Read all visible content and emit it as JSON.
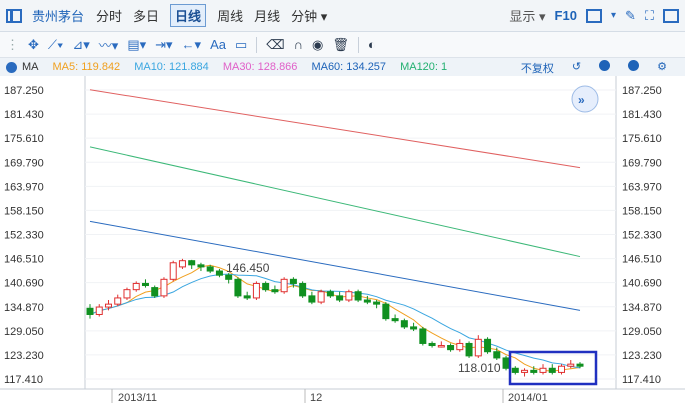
{
  "header": {
    "stock_name": "贵州茅台",
    "periods": [
      "分时",
      "多日",
      "日线",
      "周线",
      "月线",
      "分钟 ▾"
    ],
    "active_period": "日线",
    "display_label": "显示 ▾",
    "f10_label": "F10"
  },
  "ma_bar": {
    "label": "MA",
    "ma5": "MA5: 119.842",
    "ma10": "MA10: 121.884",
    "ma30": "MA30: 128.866",
    "ma60": "MA60: 134.257",
    "ma120": "MA120: 1",
    "no_restore": "不复权",
    "colors": {
      "ma5": "#f0a020",
      "ma10": "#3aa6e0",
      "ma30": "#e060c8",
      "ma60": "#1e63b8",
      "ma120": "#22b070"
    }
  },
  "price_axis": [
    "187.250",
    "181.430",
    "175.610",
    "169.790",
    "163.970",
    "158.150",
    "152.330",
    "146.510",
    "140.690",
    "134.870",
    "129.050",
    "123.230",
    "117.410"
  ],
  "annotations": {
    "high": "146.450",
    "low": "118.010"
  },
  "date_axis": [
    "2013/11",
    "12",
    "2014/01"
  ],
  "chart_data": {
    "type": "candlestick",
    "ylim": [
      115,
      190
    ],
    "ma_lines": {
      "ma120": [
        [
          0,
          187.3
        ],
        [
          1,
          168.5
        ]
      ],
      "ma60": [
        [
          0,
          173.5
        ],
        [
          1,
          147.0
        ]
      ],
      "ma30": [
        [
          0,
          155.5
        ],
        [
          1,
          134.0
        ]
      ]
    },
    "candles": [
      [
        134.5,
        133.0,
        135.5,
        132.0
      ],
      [
        133.0,
        134.8,
        135.5,
        132.5
      ],
      [
        134.8,
        135.5,
        136.5,
        134.0
      ],
      [
        135.5,
        137.0,
        137.8,
        135.0
      ],
      [
        137.0,
        139.0,
        139.5,
        136.5
      ],
      [
        139.0,
        140.5,
        141.0,
        138.5
      ],
      [
        140.5,
        140.0,
        141.5,
        139.5
      ],
      [
        139.5,
        137.5,
        140.0,
        137.0
      ],
      [
        137.5,
        141.5,
        142.0,
        137.0
      ],
      [
        141.5,
        145.5,
        146.0,
        141.0
      ],
      [
        144.5,
        146.0,
        146.45,
        144.0
      ],
      [
        146.0,
        145.0,
        146.2,
        144.0
      ],
      [
        145.0,
        144.5,
        145.5,
        143.5
      ],
      [
        144.5,
        143.5,
        145.0,
        143.0
      ],
      [
        143.5,
        142.5,
        144.0,
        142.0
      ],
      [
        142.5,
        141.5,
        143.0,
        140.5
      ],
      [
        141.5,
        137.5,
        142.0,
        137.0
      ],
      [
        137.5,
        137.0,
        138.5,
        136.5
      ],
      [
        137.0,
        140.5,
        141.0,
        136.5
      ],
      [
        140.5,
        139.0,
        141.0,
        138.5
      ],
      [
        139.0,
        138.5,
        140.0,
        138.0
      ],
      [
        138.5,
        141.5,
        142.0,
        138.0
      ],
      [
        141.5,
        140.5,
        142.0,
        139.5
      ],
      [
        140.5,
        137.5,
        141.0,
        137.0
      ],
      [
        137.5,
        136.0,
        138.5,
        135.5
      ],
      [
        136.0,
        138.5,
        139.0,
        135.5
      ],
      [
        138.5,
        137.5,
        139.0,
        137.0
      ],
      [
        137.5,
        136.5,
        138.5,
        136.0
      ],
      [
        136.5,
        138.5,
        139.0,
        136.0
      ],
      [
        138.5,
        136.5,
        139.0,
        136.0
      ],
      [
        136.5,
        136.0,
        137.5,
        135.5
      ],
      [
        136.0,
        135.5,
        136.5,
        134.5
      ],
      [
        135.5,
        132.0,
        136.0,
        131.5
      ],
      [
        132.0,
        131.5,
        133.0,
        131.0
      ],
      [
        131.5,
        130.0,
        132.0,
        129.5
      ],
      [
        130.0,
        129.5,
        131.0,
        129.0
      ],
      [
        129.5,
        126.0,
        130.0,
        125.5
      ],
      [
        126.0,
        125.5,
        126.5,
        125.0
      ],
      [
        125.5,
        125.5,
        126.5,
        125.0
      ],
      [
        125.5,
        124.5,
        126.0,
        124.0
      ],
      [
        124.5,
        126.0,
        127.0,
        124.0
      ],
      [
        126.0,
        123.0,
        126.5,
        122.5
      ],
      [
        123.0,
        127.0,
        128.0,
        122.5
      ],
      [
        127.0,
        124.0,
        127.5,
        123.5
      ],
      [
        124.0,
        122.5,
        125.0,
        122.0
      ],
      [
        122.5,
        120.0,
        123.0,
        119.5
      ],
      [
        120.0,
        119.0,
        120.5,
        118.5
      ],
      [
        119.0,
        119.5,
        120.0,
        118.01
      ],
      [
        119.5,
        119.0,
        120.5,
        118.5
      ],
      [
        119.0,
        120.0,
        121.0,
        118.5
      ],
      [
        120.0,
        119.0,
        121.0,
        118.5
      ],
      [
        119.0,
        120.5,
        121.0,
        118.5
      ],
      [
        120.5,
        121.0,
        122.0,
        120.0
      ],
      [
        121.0,
        120.5,
        121.5,
        120.0
      ]
    ]
  }
}
